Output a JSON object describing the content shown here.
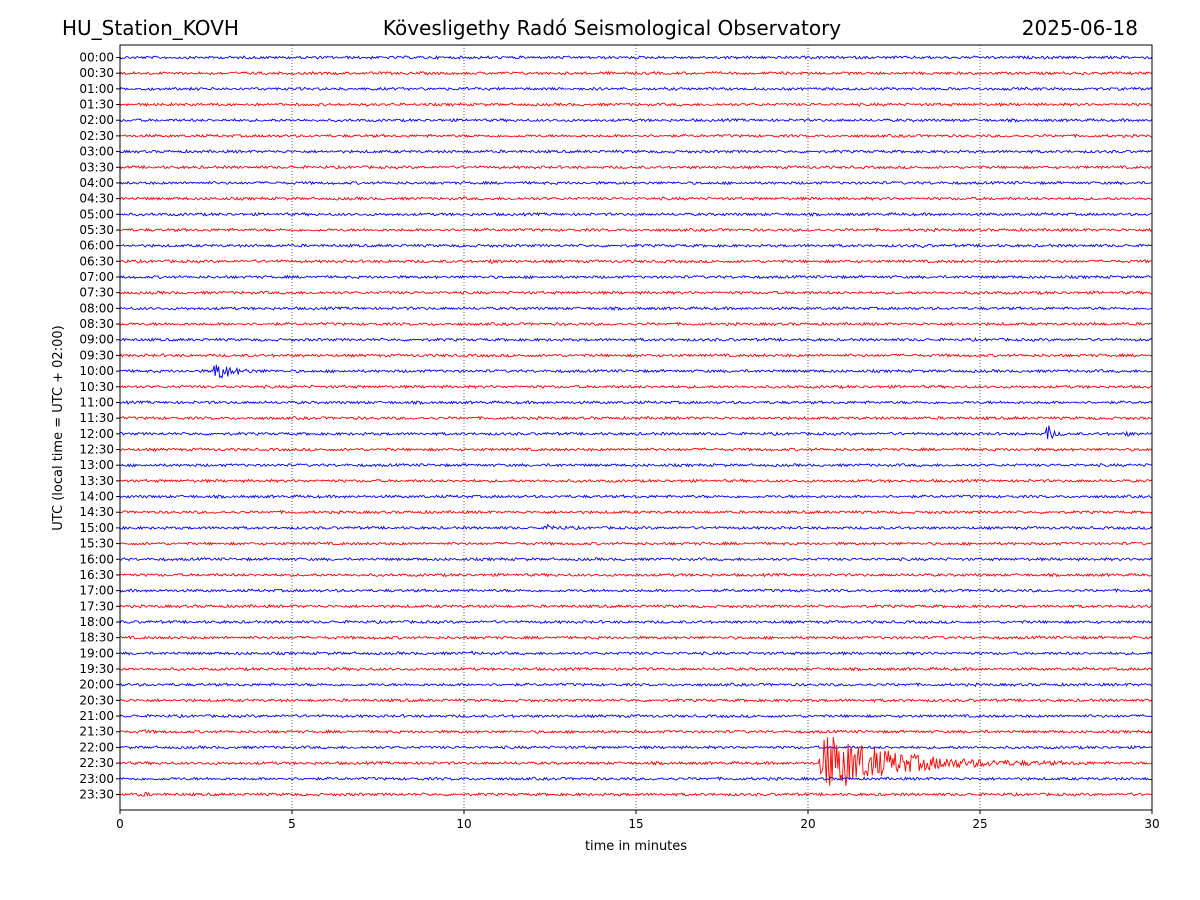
{
  "header": {
    "station": "HU_Station_KOVH",
    "observatory": "Kövesligethy Radó Seismological Observatory",
    "date": "2025-06-18"
  },
  "chart_data": {
    "type": "line",
    "title": "Kövesligethy Radó Seismological Observatory",
    "xlabel": "time in minutes",
    "ylabel": "UTC (local time = UTC + 02:00)",
    "xlim": [
      0,
      30
    ],
    "x_ticks": [
      "0",
      "5",
      "10",
      "15",
      "20",
      "25",
      "30"
    ],
    "vertical_grid_minutes": [
      5,
      10,
      15,
      20,
      25
    ],
    "grid": "dotted vertical lines",
    "trace_colors": [
      "#0000ff",
      "#ff0000"
    ],
    "row_labels": [
      "00:00",
      "00:30",
      "01:00",
      "01:30",
      "02:00",
      "02:30",
      "03:00",
      "03:30",
      "04:00",
      "04:30",
      "05:00",
      "05:30",
      "06:00",
      "06:30",
      "07:00",
      "07:30",
      "08:00",
      "08:30",
      "09:00",
      "09:30",
      "10:00",
      "10:30",
      "11:00",
      "11:30",
      "12:00",
      "12:30",
      "13:00",
      "13:30",
      "14:00",
      "14:30",
      "15:00",
      "15:30",
      "16:00",
      "16:30",
      "17:00",
      "17:30",
      "18:00",
      "18:30",
      "19:00",
      "19:30",
      "20:00",
      "20:30",
      "21:00",
      "21:30",
      "22:00",
      "22:30",
      "23:00",
      "23:30"
    ],
    "events": [
      {
        "row": "10:00",
        "start_min": 2.7,
        "duration_min": 1.8,
        "amplitude": 1.6
      },
      {
        "row": "12:00",
        "start_min": 26.9,
        "duration_min": 0.6,
        "amplitude": 2.0
      },
      {
        "row": "12:00",
        "start_min": 29.2,
        "duration_min": 0.5,
        "amplitude": 0.4
      },
      {
        "row": "15:00",
        "start_min": 12.4,
        "duration_min": 1.2,
        "amplitude": 0.4
      },
      {
        "row": "13:00",
        "start_min": 12.6,
        "duration_min": 0.3,
        "amplitude": 0.35
      },
      {
        "row": "06:00",
        "start_min": 23.3,
        "duration_min": 0.3,
        "amplitude": 0.3
      },
      {
        "row": "06:30",
        "start_min": 10.7,
        "duration_min": 0.6,
        "amplitude": 0.25
      },
      {
        "row": "08:30",
        "start_min": 28.3,
        "duration_min": 0.3,
        "amplitude": 0.3
      },
      {
        "row": "19:00",
        "start_min": 10.2,
        "duration_min": 0.2,
        "amplitude": 0.25
      },
      {
        "row": "21:30",
        "start_min": 0.6,
        "duration_min": 0.7,
        "amplitude": 0.25
      },
      {
        "row": "23:30",
        "start_min": 0.5,
        "duration_min": 1.2,
        "amplitude": 0.2
      },
      {
        "row": "22:30",
        "start_min": 20.3,
        "duration_min": 8.0,
        "amplitude": 4.5
      }
    ]
  }
}
